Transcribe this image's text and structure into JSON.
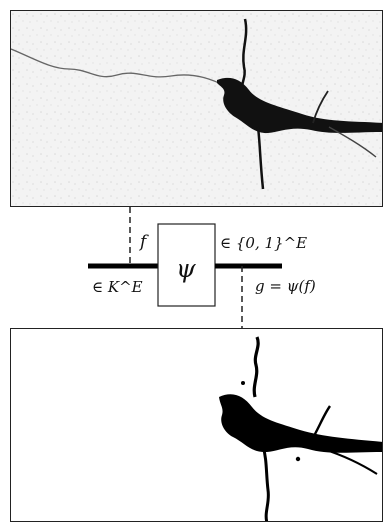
{
  "diagram": {
    "input_label": "f",
    "operator_symbol": "ψ",
    "input_domain_label": "∈ K^E",
    "output_domain_label": "∈ {0, 1}^E",
    "output_label": "g = ψ(f)"
  },
  "input_image": {
    "description": "grayscale image",
    "colors": {
      "background": "#f2f2f2",
      "river": "#111111"
    }
  },
  "output_image": {
    "description": "binary image",
    "colors": {
      "background": "#ffffff",
      "foreground": "#000000"
    }
  }
}
